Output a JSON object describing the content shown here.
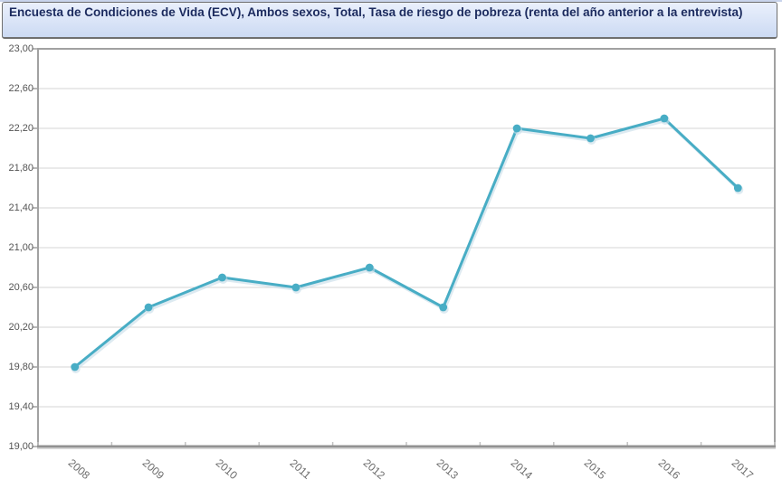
{
  "title": {
    "text": "Encuesta de Condiciones de Vida (ECV), Ambos sexos, Total, Tasa de riesgo de pobreza (renta del año anterior a la entrevista)",
    "text_color": "#1b2a5e",
    "background_top": "#eaf0fc",
    "background_bottom": "#ccdaf3",
    "border_color": "#6f6f6f",
    "top_strip_color": "#c9d4ec"
  },
  "chart_data": {
    "type": "line",
    "title": "Encuesta de Condiciones de Vida (ECV), Ambos sexos, Total, Tasa de riesgo de pobreza (renta del año anterior a la entrevista)",
    "categories": [
      "2008",
      "2009",
      "2010",
      "2011",
      "2012",
      "2013",
      "2014",
      "2015",
      "2016",
      "2017"
    ],
    "values": [
      19.8,
      20.4,
      20.7,
      20.6,
      20.8,
      20.4,
      22.2,
      22.1,
      22.3,
      21.6
    ],
    "xlabel": "",
    "ylabel": "",
    "ylim": [
      19.0,
      23.0
    ],
    "ytick_step": 0.4,
    "ytick_labels": [
      "19,00",
      "19,40",
      "19,80",
      "20,20",
      "20,60",
      "21,00",
      "21,40",
      "21,80",
      "22,20",
      "22,60",
      "23,00"
    ],
    "grid": true,
    "legend": "none",
    "decimal_separator": ",",
    "colors": {
      "line": "#48adc5",
      "marker": "#48adc5",
      "marker_shadow": "#c6dce8",
      "grid": "#d6d6d6",
      "axis": "#a1a1a1",
      "axis_bottom": "#929292",
      "axis_shadow": "#d9d9d9",
      "x_tick": "#c2c2c2",
      "y_tick_label": "#545454",
      "x_tick_label": "#6e6e6e"
    }
  }
}
